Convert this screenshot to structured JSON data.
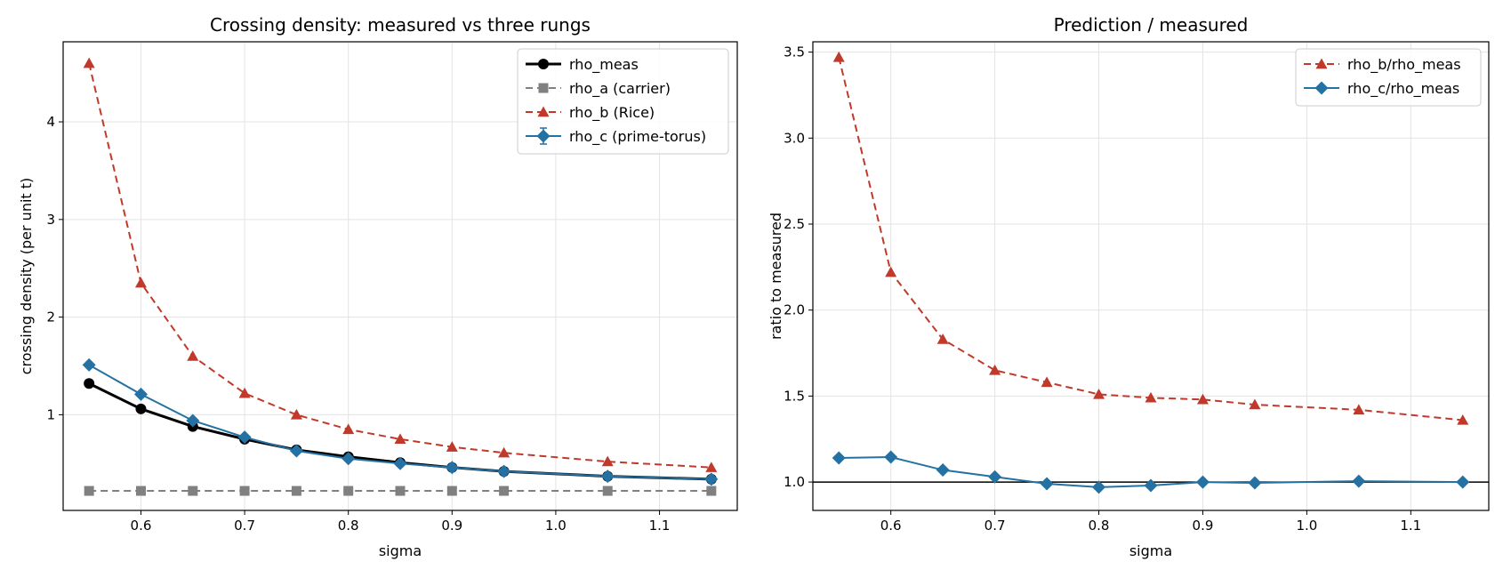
{
  "chart_data": [
    {
      "type": "line",
      "title": "Crossing density: measured vs three rungs",
      "xlabel": "sigma",
      "ylabel": "crossing density (per unit t)",
      "xlim": [
        0.525,
        1.175
      ],
      "ylim": [
        0.02,
        4.82
      ],
      "xticks": [
        0.6,
        0.7,
        0.8,
        0.9,
        1.0,
        1.1
      ],
      "xtick_labels": [
        "0.6",
        "0.7",
        "0.8",
        "0.9",
        "1.0",
        "1.1"
      ],
      "yticks": [
        1,
        2,
        3,
        4
      ],
      "ytick_labels": [
        "1",
        "2",
        "3",
        "4"
      ],
      "grid": true,
      "legend_position": "top-right",
      "x": [
        0.55,
        0.6,
        0.65,
        0.7,
        0.75,
        0.8,
        0.85,
        0.9,
        0.95,
        1.05,
        1.15
      ],
      "series": [
        {
          "name": "rho_meas",
          "color": "#000000",
          "style": "solid",
          "marker": "circle",
          "values": [
            1.32,
            1.06,
            0.88,
            0.75,
            0.64,
            0.57,
            0.51,
            0.46,
            0.42,
            0.37,
            0.34
          ]
        },
        {
          "name": "rho_a (carrier)",
          "color": "#808080",
          "style": "dashed",
          "marker": "square",
          "values": [
            0.22,
            0.22,
            0.22,
            0.22,
            0.22,
            0.22,
            0.22,
            0.22,
            0.22,
            0.22,
            0.22
          ]
        },
        {
          "name": "rho_b (Rice)",
          "color": "#c0392b",
          "style": "dashed",
          "marker": "triangle",
          "values": [
            4.6,
            2.35,
            1.6,
            1.22,
            1.0,
            0.85,
            0.75,
            0.67,
            0.61,
            0.52,
            0.46
          ]
        },
        {
          "name": "rho_c (prime-torus)",
          "color": "#2471a3",
          "style": "solid",
          "marker": "diamond",
          "errorbar": true,
          "values": [
            1.51,
            1.21,
            0.94,
            0.77,
            0.63,
            0.55,
            0.5,
            0.46,
            0.42,
            0.37,
            0.34
          ]
        }
      ]
    },
    {
      "type": "line",
      "title": "Prediction / measured",
      "xlabel": "sigma",
      "ylabel": "ratio to measured",
      "xlim": [
        0.525,
        1.175
      ],
      "ylim": [
        0.835,
        3.56
      ],
      "xticks": [
        0.6,
        0.7,
        0.8,
        0.9,
        1.0,
        1.1
      ],
      "xtick_labels": [
        "0.6",
        "0.7",
        "0.8",
        "0.9",
        "1.0",
        "1.1"
      ],
      "yticks": [
        1.0,
        1.5,
        2.0,
        2.5,
        3.0,
        3.5
      ],
      "ytick_labels": [
        "1.0",
        "1.5",
        "2.0",
        "2.5",
        "3.0",
        "3.5"
      ],
      "grid": true,
      "legend_position": "top-right",
      "reference_line": {
        "y": 1.0,
        "color": "#000000"
      },
      "x": [
        0.55,
        0.6,
        0.65,
        0.7,
        0.75,
        0.8,
        0.85,
        0.9,
        0.95,
        1.05,
        1.15
      ],
      "series": [
        {
          "name": "rho_b/rho_meas",
          "color": "#c0392b",
          "style": "dashed",
          "marker": "triangle",
          "values": [
            3.47,
            2.22,
            1.83,
            1.65,
            1.58,
            1.51,
            1.49,
            1.48,
            1.45,
            1.42,
            1.36
          ]
        },
        {
          "name": "rho_c/rho_meas",
          "color": "#2471a3",
          "style": "solid",
          "marker": "diamond",
          "values": [
            1.14,
            1.145,
            1.07,
            1.03,
            0.99,
            0.97,
            0.98,
            1.0,
            0.995,
            1.005,
            1.0
          ]
        }
      ]
    }
  ]
}
